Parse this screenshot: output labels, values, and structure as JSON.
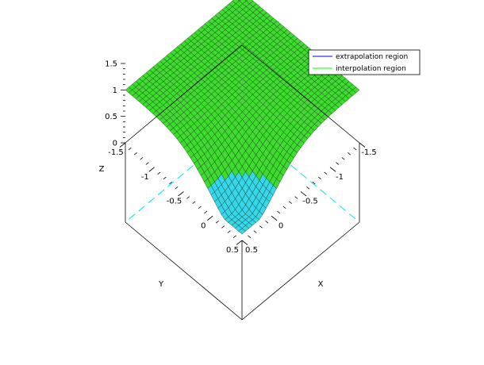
{
  "chart_data": {
    "type": "surface3d",
    "xlabel": "X",
    "ylabel": "Y",
    "zlabel": "Z",
    "x_range": [
      -1.5,
      0.5
    ],
    "y_range": [
      -1.5,
      0.5
    ],
    "z_range": [
      0,
      1.5
    ],
    "x_ticks": [
      "-1.5",
      "-1",
      "-0.5",
      "0",
      "0.5"
    ],
    "y_ticks": [
      "-1.5",
      "-1",
      "-0.5",
      "0",
      "0.5"
    ],
    "z_ticks": [
      "0",
      "0.5",
      "1",
      "1.5"
    ],
    "legend_position": "top-right",
    "series": [
      {
        "name": "extrapolation region",
        "color": "#0000ff"
      },
      {
        "name": "interpolation region",
        "color": "#00ff00"
      }
    ],
    "colors": {
      "surface_green": "#3ddc2e",
      "surface_cyan": "#35d7e8",
      "mesh": "#0a1a0a",
      "box_dashed": "#00e5ee"
    }
  }
}
